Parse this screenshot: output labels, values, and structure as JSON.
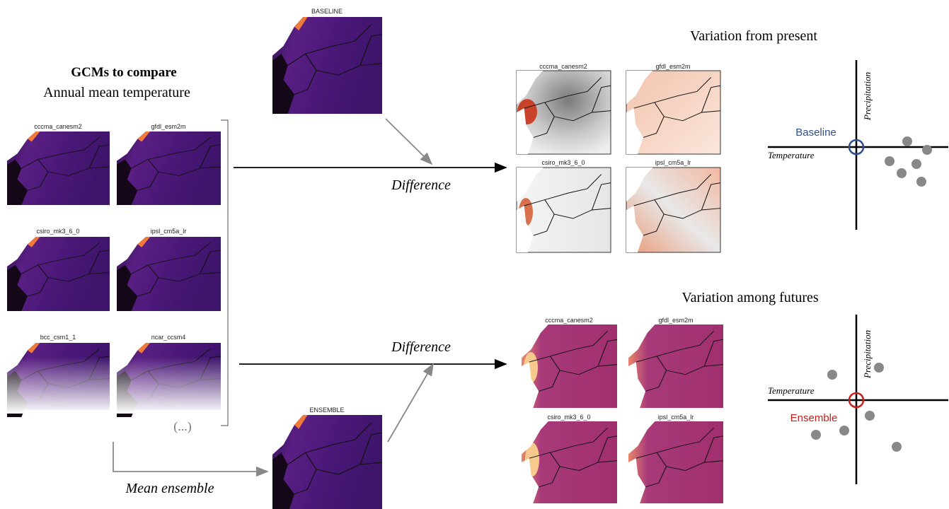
{
  "left": {
    "title": "GCMs to compare",
    "subtitle": "Annual mean temperature",
    "maps": [
      "cccma_canesm2",
      "gfdl_esm2m",
      "csiro_mk3_6_0",
      "ipsl_cm5a_lr",
      "bcc_csm1_1",
      "ncar_ccsm4"
    ],
    "more": "(...)"
  },
  "baseline": "BASELINE",
  "ensemble": "ENSEMBLE",
  "arrows": {
    "difference_top": "Difference",
    "difference_bottom": "Difference",
    "mean_ensemble": "Mean ensemble"
  },
  "present": {
    "title": "Variation from present",
    "maps": [
      "cccma_canesm2",
      "gfdl_esm2m",
      "csiro_mk3_6_0",
      "ipsl_cm5a_lr"
    ],
    "point": "Baseline",
    "x_axis": "Temperature",
    "y_axis": "Precipitation"
  },
  "futures": {
    "title": "Variation among futures",
    "maps": [
      "cccma_canesm2",
      "gfdl_esm2m",
      "csiro_mk3_6_0",
      "ipsl_cm5a_lr"
    ],
    "point": "Ensemble",
    "x_axis": "Temperature",
    "y_axis": "Precipitation"
  }
}
